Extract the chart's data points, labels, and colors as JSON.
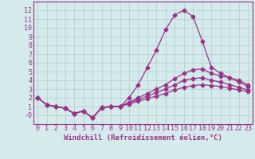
{
  "x": [
    0,
    1,
    2,
    3,
    4,
    5,
    6,
    7,
    8,
    9,
    10,
    11,
    12,
    13,
    14,
    15,
    16,
    17,
    18,
    19,
    20,
    21,
    22,
    23
  ],
  "line1": [
    2,
    1.2,
    1.0,
    0.8,
    0.2,
    0.5,
    -0.3,
    0.8,
    1.0,
    1.0,
    2.0,
    3.5,
    5.5,
    7.5,
    9.8,
    11.5,
    12.0,
    11.3,
    8.5,
    5.5,
    4.8,
    4.3,
    3.8,
    3.3
  ],
  "line2": [
    2,
    1.2,
    1.0,
    0.8,
    0.2,
    0.5,
    -0.3,
    0.9,
    1.0,
    1.0,
    1.5,
    2.0,
    2.5,
    3.0,
    3.5,
    4.2,
    4.8,
    5.2,
    5.3,
    4.8,
    4.5,
    4.3,
    4.0,
    3.5
  ],
  "line3": [
    2,
    1.2,
    1.0,
    0.8,
    0.2,
    0.5,
    -0.3,
    0.9,
    1.0,
    1.0,
    1.4,
    1.8,
    2.2,
    2.6,
    3.0,
    3.5,
    4.0,
    4.2,
    4.3,
    4.0,
    3.8,
    3.5,
    3.2,
    2.9
  ],
  "line4": [
    2,
    1.2,
    1.0,
    0.8,
    0.2,
    0.5,
    -0.3,
    0.9,
    1.0,
    1.0,
    1.3,
    1.6,
    1.9,
    2.2,
    2.5,
    2.9,
    3.2,
    3.4,
    3.5,
    3.4,
    3.3,
    3.1,
    2.9,
    2.7
  ],
  "bg_color": "#d5eaea",
  "line_color": "#993388",
  "grid_color": "#b0cccc",
  "xlabel": "Windchill (Refroidissement éolien,°C)",
  "ylim": [
    -1,
    13
  ],
  "xlim": [
    -0.5,
    23.5
  ],
  "yticks": [
    0,
    1,
    2,
    3,
    4,
    5,
    6,
    7,
    8,
    9,
    10,
    11,
    12
  ],
  "ytick_labels": [
    "-0",
    "1",
    "2",
    "3",
    "4",
    "5",
    "6",
    "7",
    "8",
    "9",
    "10",
    "11",
    "12"
  ],
  "xticks": [
    0,
    1,
    2,
    3,
    4,
    5,
    6,
    7,
    8,
    9,
    10,
    11,
    12,
    13,
    14,
    15,
    16,
    17,
    18,
    19,
    20,
    21,
    22,
    23
  ],
  "xlabel_fontsize": 6.5,
  "tick_fontsize": 6.0,
  "lw": 0.9,
  "ms": 2.5
}
